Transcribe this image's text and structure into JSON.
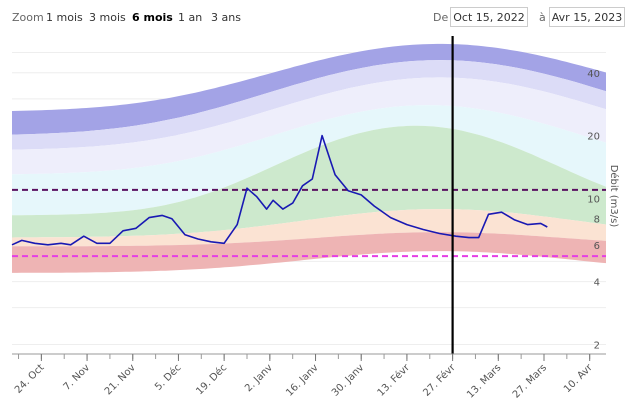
{
  "toolbar": {
    "zoom_label": "Zoom",
    "buttons": [
      "1 mois",
      "3 mois",
      "6 mois",
      "1 an",
      "3 ans"
    ],
    "active_button": "6 mois",
    "from_label": "De",
    "from_date": "Oct 15, 2022",
    "to_label": "à",
    "to_date": "Avr 15, 2023"
  },
  "chart_data": {
    "type": "area",
    "ylabel": "Débit (m3/s)",
    "yscale": "log",
    "y_ticks": [
      2,
      4,
      6,
      8,
      10,
      20,
      40
    ],
    "ylim": [
      1.8,
      60
    ],
    "x_ticks": [
      "24. Oct",
      "7. Nov",
      "21. Nov",
      "5. Déc",
      "19. Déc",
      "2. Janv",
      "16. Janv",
      "30. Janv",
      "13. Févr",
      "27. Févr",
      "13. Mars",
      "27. Mars",
      "10. Avr"
    ],
    "grid": true,
    "markers": {
      "vertical_line_date": "27. Févr",
      "upper_threshold": 11,
      "lower_threshold": 5.3
    },
    "colors": {
      "series_line": "#1919b3",
      "upper_threshold": "#5a1060",
      "lower_threshold": "#e53de5",
      "band_purple": "#a3a3e6",
      "band_lavender": "#dcdcf7",
      "band_cyan": "#e6f7fb",
      "band_green": "#cde9cd",
      "band_peach": "#fbe3d3",
      "band_red": "#eeb4b4"
    },
    "series": [
      {
        "values": [
          {
            "x": "Oct 15",
            "y": 6.0
          },
          {
            "x": "Oct 18",
            "y": 6.3
          },
          {
            "x": "Oct 22",
            "y": 6.1
          },
          {
            "x": "Oct 26",
            "y": 6.0
          },
          {
            "x": "Oct 30",
            "y": 6.1
          },
          {
            "x": "Nov 2",
            "y": 6.0
          },
          {
            "x": "Nov 6",
            "y": 6.6
          },
          {
            "x": "Nov 10",
            "y": 6.1
          },
          {
            "x": "Nov 14",
            "y": 6.1
          },
          {
            "x": "Nov 18",
            "y": 7.0
          },
          {
            "x": "Nov 22",
            "y": 7.2
          },
          {
            "x": "Nov 26",
            "y": 8.1
          },
          {
            "x": "Nov 30",
            "y": 8.3
          },
          {
            "x": "Dec 3",
            "y": 8.0
          },
          {
            "x": "Dec 7",
            "y": 6.7
          },
          {
            "x": "Dec 11",
            "y": 6.4
          },
          {
            "x": "Dec 15",
            "y": 6.2
          },
          {
            "x": "Dec 19",
            "y": 6.1
          },
          {
            "x": "Dec 23",
            "y": 7.5
          },
          {
            "x": "Dec 26",
            "y": 11.2
          },
          {
            "x": "Dec 29",
            "y": 10.2
          },
          {
            "x": "Jan 1",
            "y": 8.9
          },
          {
            "x": "Jan 3",
            "y": 9.8
          },
          {
            "x": "Jan 6",
            "y": 8.9
          },
          {
            "x": "Jan 9",
            "y": 9.5
          },
          {
            "x": "Jan 12",
            "y": 11.5
          },
          {
            "x": "Jan 15",
            "y": 12.4
          },
          {
            "x": "Jan 18",
            "y": 20.0
          },
          {
            "x": "Jan 22",
            "y": 13.0
          },
          {
            "x": "Jan 26",
            "y": 10.9
          },
          {
            "x": "Jan 30",
            "y": 10.4
          },
          {
            "x": "Feb 3",
            "y": 9.2
          },
          {
            "x": "Feb 8",
            "y": 8.1
          },
          {
            "x": "Feb 13",
            "y": 7.5
          },
          {
            "x": "Feb 18",
            "y": 7.1
          },
          {
            "x": "Feb 23",
            "y": 6.8
          },
          {
            "x": "Feb 28",
            "y": 6.6
          },
          {
            "x": "Mar 4",
            "y": 6.5
          },
          {
            "x": "Mar 7",
            "y": 6.5
          },
          {
            "x": "Mar 10",
            "y": 8.4
          },
          {
            "x": "Mar 14",
            "y": 8.6
          },
          {
            "x": "Mar 18",
            "y": 7.9
          },
          {
            "x": "Mar 22",
            "y": 7.5
          },
          {
            "x": "Mar 26",
            "y": 7.6
          },
          {
            "x": "Mar 28",
            "y": 7.3
          }
        ]
      }
    ]
  }
}
